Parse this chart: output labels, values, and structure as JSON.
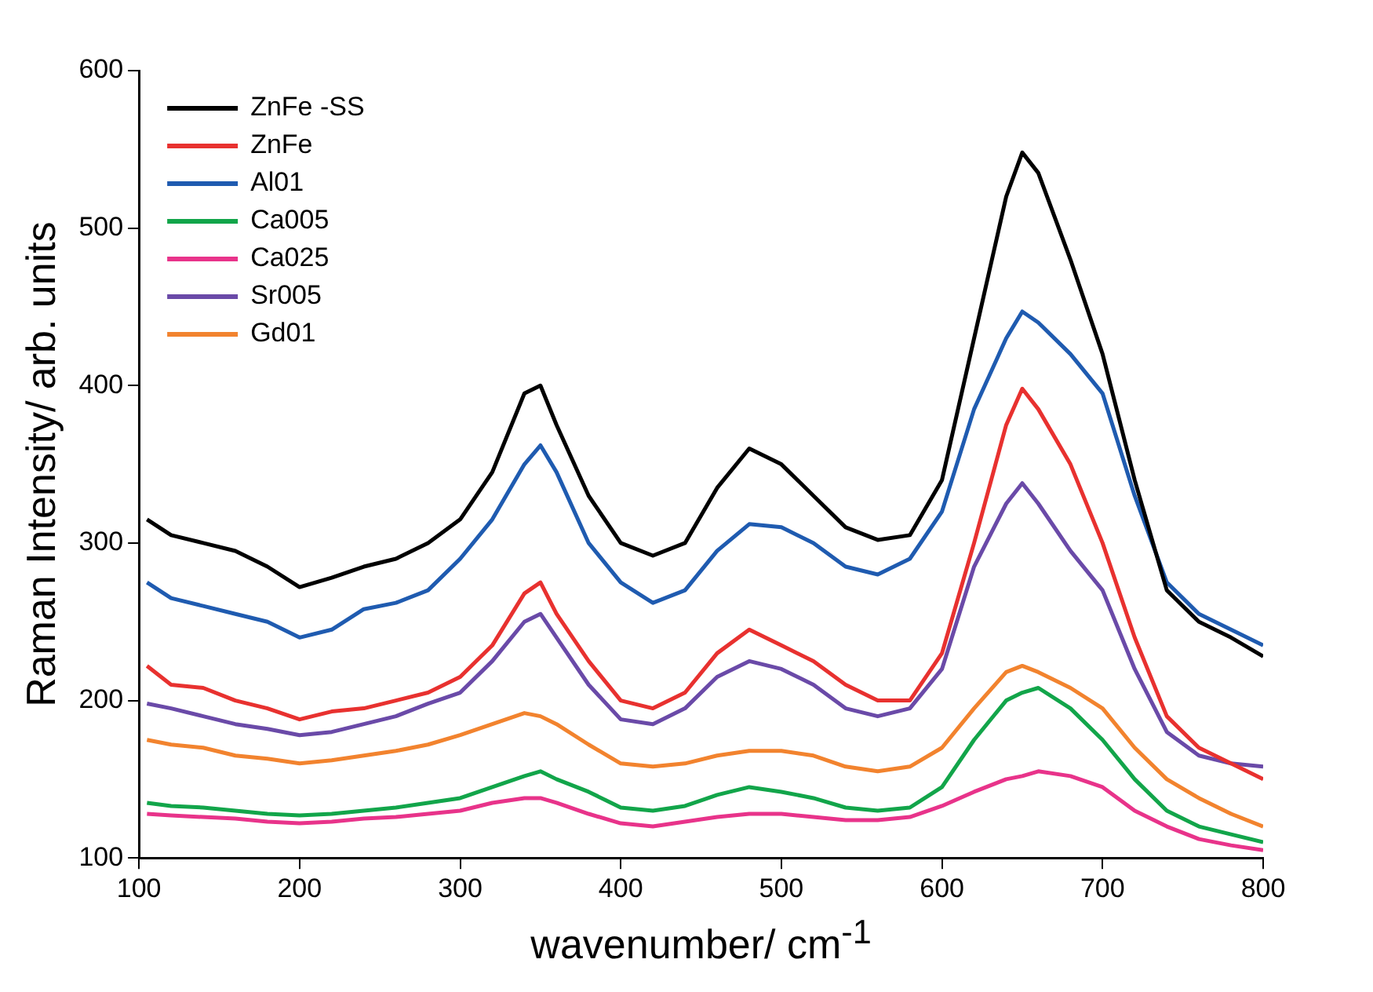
{
  "chart_data": {
    "type": "line",
    "xlabel": "wavenumber/ cm$^{-1}$",
    "ylabel": "Raman Intensity/ arb. units",
    "x": [
      105,
      120,
      140,
      160,
      180,
      200,
      220,
      240,
      260,
      280,
      300,
      320,
      340,
      350,
      360,
      380,
      400,
      420,
      440,
      460,
      480,
      500,
      520,
      540,
      560,
      580,
      600,
      620,
      640,
      650,
      660,
      680,
      700,
      720,
      740,
      760,
      780,
      800
    ],
    "xlim": [
      100,
      800
    ],
    "xticks": [
      100,
      200,
      300,
      400,
      500,
      600,
      700,
      800
    ],
    "ylim": [
      100,
      600
    ],
    "yticks": [
      100,
      200,
      300,
      400,
      500,
      600
    ],
    "grid": false,
    "legend": "top left",
    "marker": "none",
    "line_style": "solid",
    "series": [
      {
        "name": "ZnFe -SS",
        "color": "#000000",
        "values": [
          315,
          305,
          300,
          295,
          285,
          272,
          278,
          285,
          290,
          300,
          315,
          345,
          395,
          400,
          375,
          330,
          300,
          292,
          300,
          335,
          360,
          350,
          330,
          310,
          302,
          305,
          340,
          430,
          520,
          548,
          535,
          480,
          420,
          340,
          270,
          250,
          240,
          228
        ]
      },
      {
        "name": "ZnFe",
        "color": "#e8312f",
        "values": [
          222,
          210,
          208,
          200,
          195,
          188,
          193,
          195,
          200,
          205,
          215,
          235,
          268,
          275,
          255,
          225,
          200,
          195,
          205,
          230,
          245,
          235,
          225,
          210,
          200,
          200,
          230,
          300,
          375,
          398,
          385,
          350,
          300,
          240,
          190,
          170,
          160,
          150
        ]
      },
      {
        "name": "Al01",
        "color": "#1f5bb0",
        "values": [
          275,
          265,
          260,
          255,
          250,
          240,
          245,
          258,
          262,
          270,
          290,
          315,
          350,
          362,
          345,
          300,
          275,
          262,
          270,
          295,
          312,
          310,
          300,
          285,
          280,
          290,
          320,
          385,
          430,
          447,
          440,
          420,
          395,
          330,
          275,
          255,
          245,
          235
        ]
      },
      {
        "name": "Ca005",
        "color": "#12a54a",
        "values": [
          135,
          133,
          132,
          130,
          128,
          127,
          128,
          130,
          132,
          135,
          138,
          145,
          152,
          155,
          150,
          142,
          132,
          130,
          133,
          140,
          145,
          142,
          138,
          132,
          130,
          132,
          145,
          175,
          200,
          205,
          208,
          195,
          175,
          150,
          130,
          120,
          115,
          110
        ]
      },
      {
        "name": "Ca025",
        "color": "#e8338a",
        "values": [
          128,
          127,
          126,
          125,
          123,
          122,
          123,
          125,
          126,
          128,
          130,
          135,
          138,
          138,
          135,
          128,
          122,
          120,
          123,
          126,
          128,
          128,
          126,
          124,
          124,
          126,
          133,
          142,
          150,
          152,
          155,
          152,
          145,
          130,
          120,
          112,
          108,
          105
        ]
      },
      {
        "name": "Sr005",
        "color": "#6a4aa8",
        "values": [
          198,
          195,
          190,
          185,
          182,
          178,
          180,
          185,
          190,
          198,
          205,
          225,
          250,
          255,
          240,
          210,
          188,
          185,
          195,
          215,
          225,
          220,
          210,
          195,
          190,
          195,
          220,
          285,
          325,
          338,
          325,
          295,
          270,
          220,
          180,
          165,
          160,
          158
        ]
      },
      {
        "name": "Gd01",
        "color": "#f2832e",
        "values": [
          175,
          172,
          170,
          165,
          163,
          160,
          162,
          165,
          168,
          172,
          178,
          185,
          192,
          190,
          185,
          172,
          160,
          158,
          160,
          165,
          168,
          168,
          165,
          158,
          155,
          158,
          170,
          195,
          218,
          222,
          218,
          208,
          195,
          170,
          150,
          138,
          128,
          120
        ]
      }
    ]
  }
}
